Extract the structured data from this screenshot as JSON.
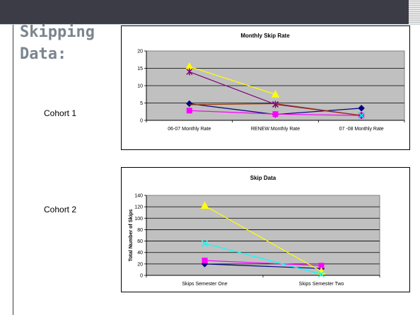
{
  "slide": {
    "title_line1": "Skipping",
    "title_line2": "Data:",
    "cohort1_label": "Cohort 1",
    "cohort2_label": "Cohort 2"
  },
  "chart_data": [
    {
      "type": "line",
      "title": "Monthly Skip Rate",
      "xlabel": "",
      "ylabel": "",
      "ylim": [
        0,
        20
      ],
      "yticks": [
        0,
        5,
        10,
        15,
        20
      ],
      "grid": true,
      "categories": [
        "06-07 Monthly Rate",
        "RENEW Monthly Rate",
        "07 -08 Monthly Rate"
      ],
      "series": [
        {
          "color": "#000080",
          "marker": "diamond",
          "values": [
            4.8,
            1.7,
            3.5
          ]
        },
        {
          "color": "#ff00ff",
          "marker": "square",
          "values": [
            2.8,
            1.8,
            1.4
          ]
        },
        {
          "color": "#ffff00",
          "marker": "triangle",
          "values": [
            15.5,
            7.5,
            null
          ]
        },
        {
          "color": "#800080",
          "marker": "star",
          "values": [
            14,
            4.6,
            1.4
          ]
        },
        {
          "color": "#993300",
          "marker": "none",
          "values": [
            4.5,
            4.8,
            1.4
          ]
        },
        {
          "color": "#00ffff",
          "marker": "x",
          "values": [
            null,
            null,
            1.4
          ]
        }
      ]
    },
    {
      "type": "line",
      "title": "Skip Data",
      "xlabel": "",
      "ylabel": "Total Number of Skips",
      "ylim": [
        0,
        140
      ],
      "yticks": [
        0,
        20,
        40,
        60,
        80,
        100,
        120,
        140
      ],
      "grid": true,
      "categories": [
        "Skips Semester One",
        "Skips Semester Two"
      ],
      "series": [
        {
          "color": "#000080",
          "marker": "diamond",
          "values": [
            20,
            12
          ]
        },
        {
          "color": "#ff00ff",
          "marker": "square",
          "values": [
            26,
            17
          ]
        },
        {
          "color": "#ffff00",
          "marker": "triangle",
          "values": [
            122,
            7
          ]
        },
        {
          "color": "#00ffff",
          "marker": "x",
          "values": [
            56,
            2
          ]
        }
      ]
    }
  ]
}
